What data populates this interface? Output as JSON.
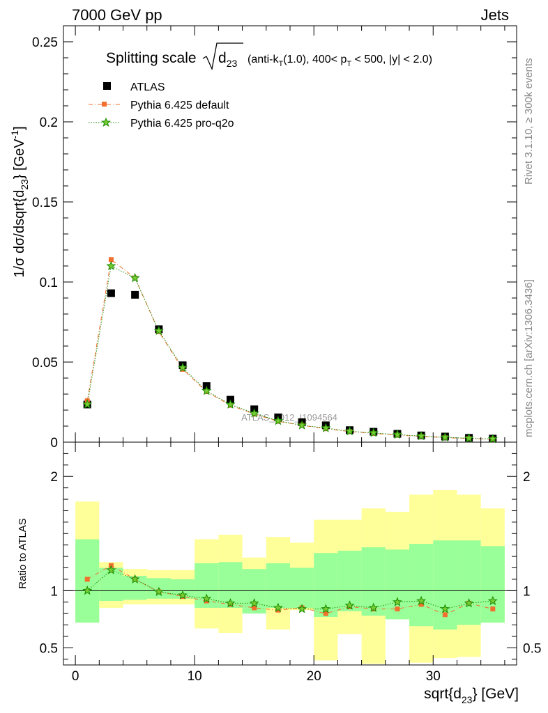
{
  "header": {
    "left": "7000 GeV pp",
    "right": "Jets"
  },
  "title": {
    "prefix": "Splitting scale",
    "symbol": "d",
    "symbol_sub": "23",
    "cut_1": "(anti-k",
    "cut_1_sub": "T",
    "cut_2": "(1.0), 400< p",
    "cut_2_sub": "T",
    "cut_3": " < 500, |y| < 2.0)"
  },
  "side_labels": {
    "rivet": "Rivet 3.1.10, ≥ 300k events",
    "mcplots": "mcplots.cern.ch [arXiv:1306.3436]"
  },
  "watermark": "ATLAS_2012_I1094564",
  "colors": {
    "atlas": "#000000",
    "default": "#f26f2d",
    "proq2o": "#1a8c00",
    "proq2o_fill": "#77cc33",
    "band_outer": "#ffff99",
    "band_inner": "#99ff99"
  },
  "chart_data": {
    "type": "scatter",
    "x": [
      1,
      3,
      5,
      7,
      9,
      11,
      13,
      15,
      17,
      19,
      21,
      23,
      25,
      27,
      29,
      31,
      33,
      35
    ],
    "bin_edges": [
      0,
      2,
      4,
      6,
      8,
      10,
      12,
      14,
      16,
      18,
      20,
      22,
      24,
      26,
      28,
      30,
      32,
      34,
      36
    ],
    "xlabel": "sqrt{d",
    "xlabel_sub": "23",
    "xlabel_unit": "} [GeV]",
    "ylabel": "1/σ dσ/dsqrt{d",
    "ylabel_sub": "23",
    "ylabel_unit": "} [GeV",
    "ylabel_sup": "-1",
    "ylabel_end": "]",
    "ratio_ylabel": "Ratio to ATLAS",
    "xlim": [
      -1,
      37
    ],
    "main_ylim": [
      0,
      0.26
    ],
    "ratio_ylim": [
      0.35,
      2.3
    ],
    "main_yticks": [
      "0",
      "0.05",
      "0.1",
      "0.15",
      "0.2",
      "0.25"
    ],
    "main_ytick_values": [
      0,
      0.05,
      0.1,
      0.15,
      0.2,
      0.25
    ],
    "ratio_yticks": [
      "0.5",
      "1",
      "2"
    ],
    "ratio_ytick_values": [
      0.5,
      1,
      2
    ],
    "xticks": [
      "0",
      "10",
      "20",
      "30"
    ],
    "xtick_values": [
      0,
      10,
      20,
      30
    ],
    "legend_position": "top-left",
    "series": [
      {
        "name": "ATLAS",
        "marker": "square",
        "values": [
          0.0235,
          0.093,
          0.092,
          0.0705,
          0.048,
          0.035,
          0.0265,
          0.0205,
          0.0155,
          0.0125,
          0.0105,
          0.0075,
          0.0065,
          0.0052,
          0.0042,
          0.0035,
          0.0027,
          0.0022
        ]
      },
      {
        "name": "Pythia 6.425 default",
        "marker": "square-small",
        "line": "dashdot",
        "values": [
          0.0258,
          0.114,
          0.1025,
          0.069,
          0.0455,
          0.0315,
          0.023,
          0.0175,
          0.013,
          0.0105,
          0.0084,
          0.0066,
          0.0055,
          0.0044,
          0.0036,
          0.0028,
          0.0023,
          0.0018
        ],
        "ratio": [
          1.1,
          1.22,
          1.1,
          0.99,
          0.95,
          0.91,
          0.88,
          0.85,
          0.83,
          0.85,
          0.8,
          0.86,
          0.84,
          0.84,
          0.88,
          0.79,
          0.89,
          0.84
        ]
      },
      {
        "name": "Pythia 6.425 pro-q2o",
        "marker": "star",
        "line": "dotted",
        "values": [
          0.0236,
          0.11,
          0.1025,
          0.0695,
          0.0465,
          0.032,
          0.0235,
          0.018,
          0.0133,
          0.0105,
          0.0088,
          0.0068,
          0.0058,
          0.0047,
          0.0038,
          0.003,
          0.0024,
          0.002
        ],
        "ratio": [
          1.0,
          1.18,
          1.1,
          0.99,
          0.96,
          0.93,
          0.89,
          0.89,
          0.85,
          0.84,
          0.84,
          0.87,
          0.85,
          0.9,
          0.91,
          0.84,
          0.89,
          0.91
        ]
      }
    ],
    "ratio_band_outer": {
      "low": [
        0.72,
        0.85,
        0.88,
        0.88,
        0.88,
        0.67,
        0.63,
        0.83,
        0.66,
        0.83,
        0.39,
        0.62,
        0.36,
        0.75,
        0.37,
        0.41,
        0.42,
        0.72
      ],
      "high": [
        1.78,
        1.25,
        1.19,
        1.18,
        1.18,
        1.45,
        1.49,
        1.29,
        1.47,
        1.42,
        1.62,
        1.62,
        1.72,
        1.69,
        1.84,
        1.88,
        1.84,
        1.72
      ]
    },
    "ratio_band_inner": {
      "low": [
        0.72,
        0.91,
        0.92,
        0.93,
        0.93,
        0.85,
        0.85,
        0.8,
        0.85,
        0.85,
        0.77,
        0.82,
        0.78,
        0.75,
        0.69,
        0.66,
        0.7,
        0.72
      ],
      "high": [
        1.45,
        1.2,
        1.13,
        1.11,
        1.1,
        1.24,
        1.25,
        1.19,
        1.24,
        1.2,
        1.33,
        1.35,
        1.38,
        1.36,
        1.41,
        1.44,
        1.44,
        1.39
      ]
    }
  }
}
